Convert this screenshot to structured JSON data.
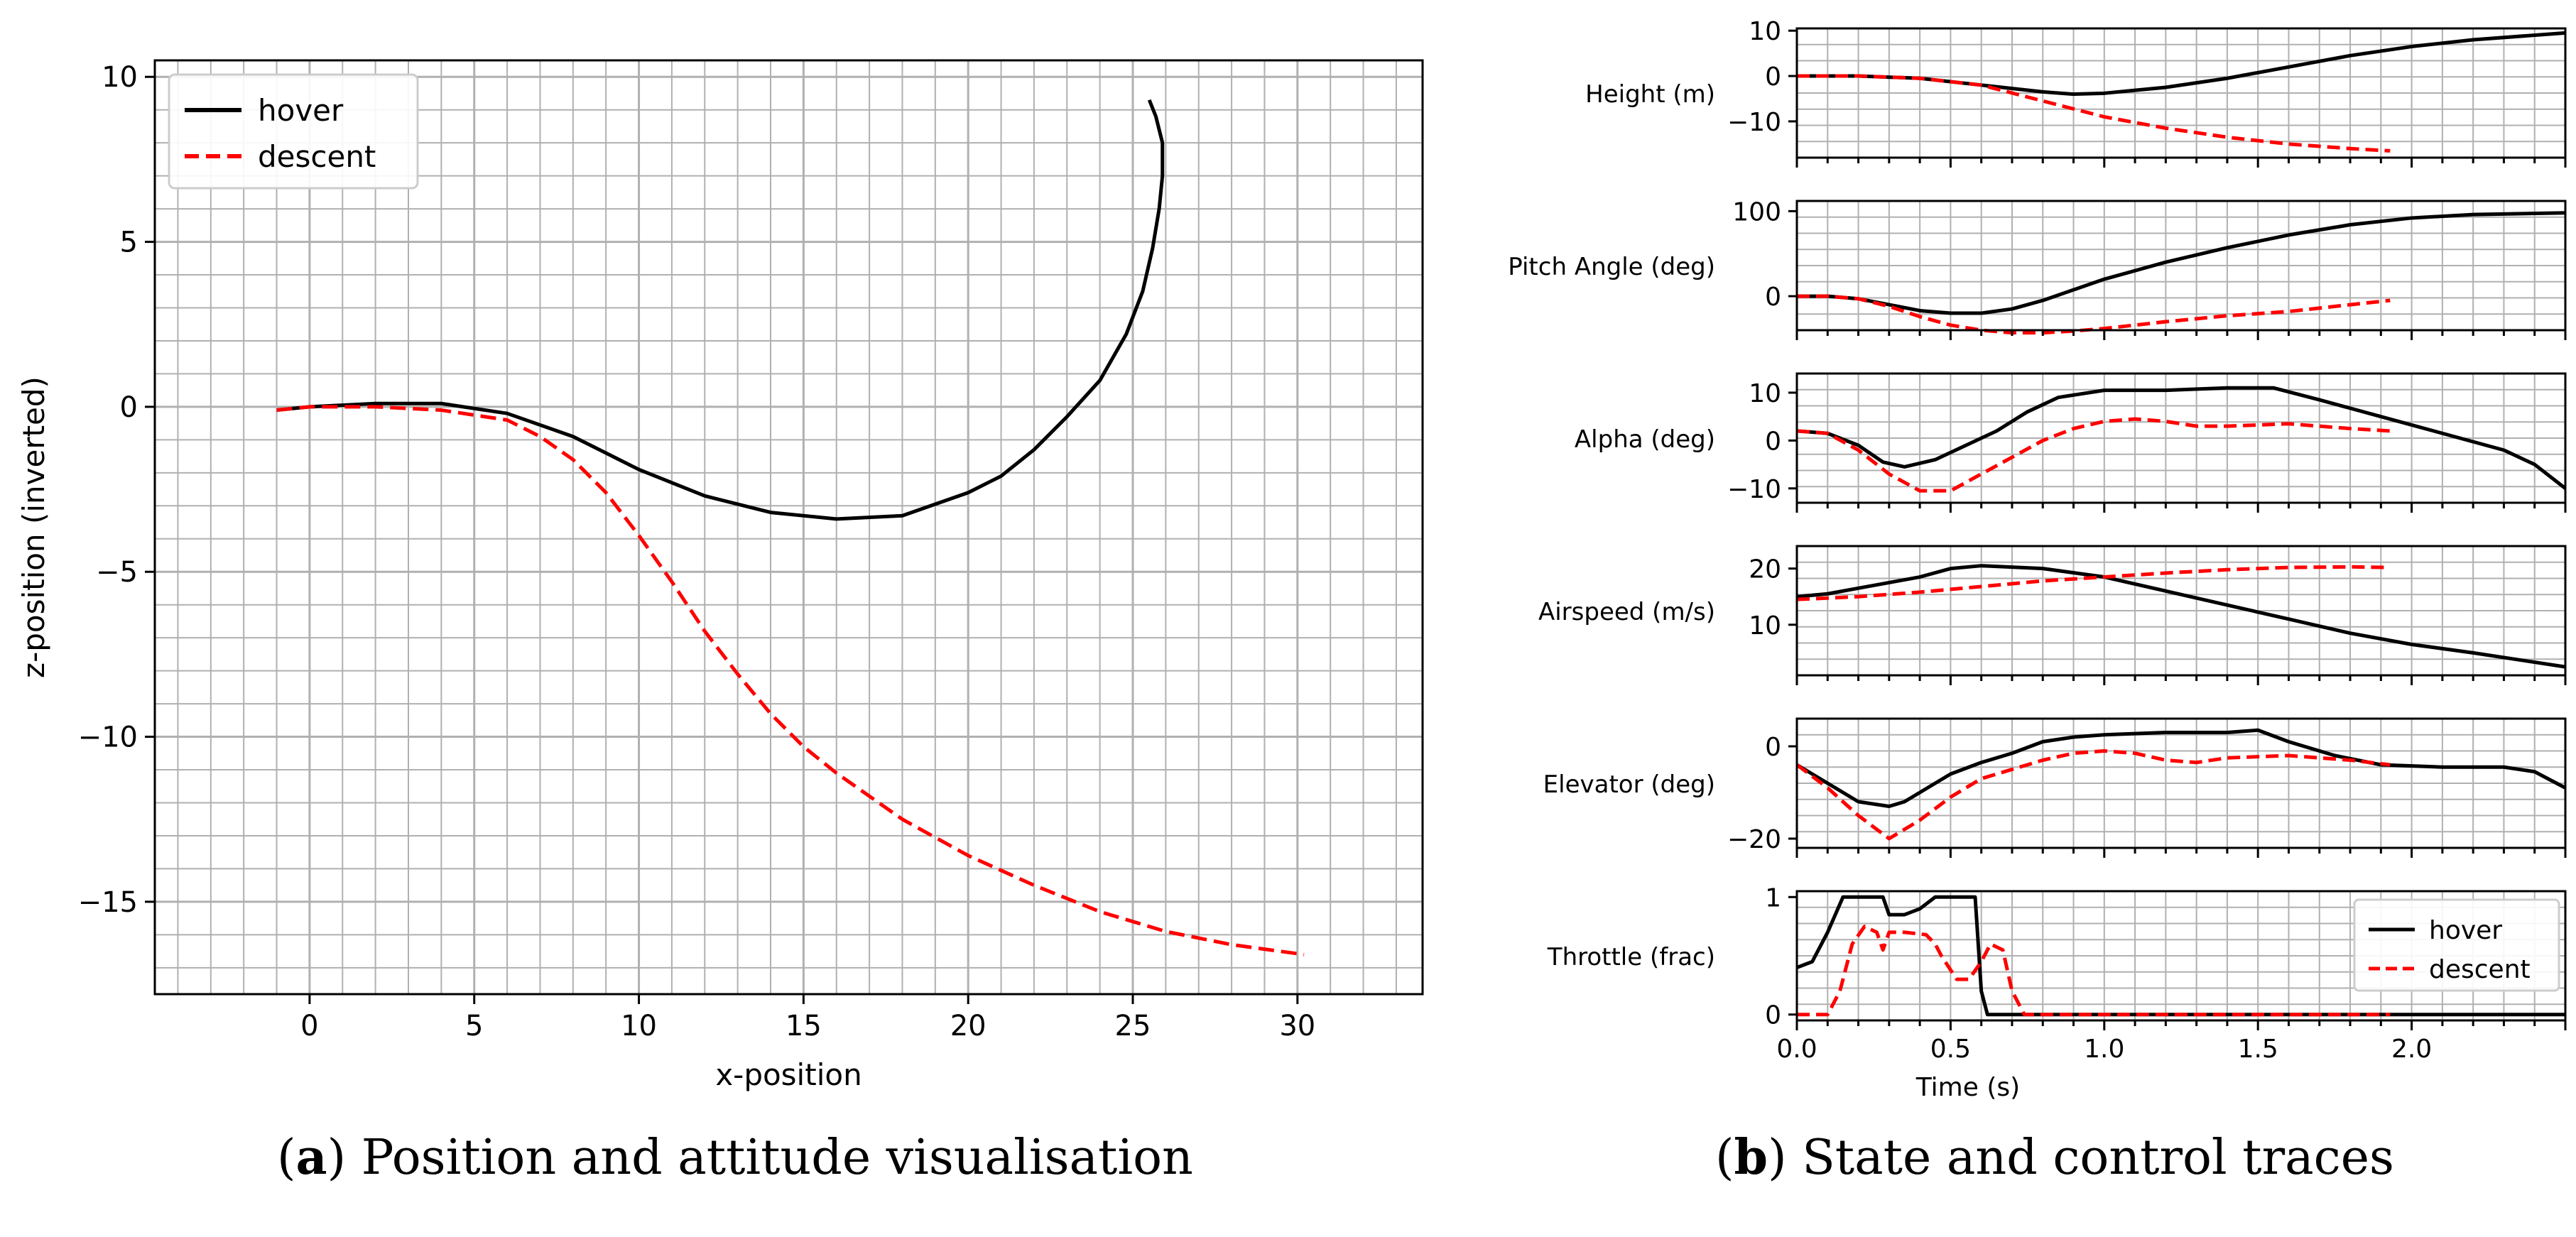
{
  "colors": {
    "hover": "#000000",
    "descent": "#ff0000",
    "green": "#2ca02c",
    "grid": "#b0b0b0"
  },
  "captions": {
    "a": {
      "letter": "a",
      "text": " Position and attitude visualisation"
    },
    "b": {
      "letter": "b",
      "text": " State and control traces"
    }
  },
  "chart_data": [
    {
      "id": "position",
      "type": "line",
      "title": "",
      "xlabel": "x-position",
      "ylabel": "z-position (inverted)",
      "xlim": [
        -4.7,
        33.8
      ],
      "ylim": [
        -17.8,
        10.5
      ],
      "xticks": [
        0,
        5,
        10,
        15,
        20,
        25,
        30
      ],
      "yticks": [
        -15,
        -10,
        -5,
        0,
        5,
        10
      ],
      "xtick_labels": [
        "0",
        "5",
        "10",
        "15",
        "20",
        "25",
        "30"
      ],
      "ytick_labels": [
        "−15",
        "−10",
        "−5",
        "0",
        "5",
        "10"
      ],
      "grid": true,
      "legend": {
        "placement": "top-left",
        "entries": [
          "hover",
          "descent"
        ]
      },
      "series": [
        {
          "name": "hover",
          "color": "#000000",
          "dash": "solid",
          "x": [
            -1,
            0,
            2,
            4,
            6,
            8,
            10,
            12,
            14,
            16,
            18,
            20,
            21,
            22,
            23,
            24,
            24.8,
            25.3,
            25.6,
            25.8,
            25.9,
            25.9,
            25.7,
            25.5
          ],
          "y": [
            -0.1,
            0,
            0.1,
            0.1,
            -0.2,
            -0.9,
            -1.9,
            -2.7,
            -3.2,
            -3.4,
            -3.3,
            -2.6,
            -2.1,
            -1.3,
            -0.3,
            0.8,
            2.2,
            3.5,
            4.8,
            6,
            7,
            8,
            8.8,
            9.3
          ]
        },
        {
          "name": "descent",
          "color": "#ff0000",
          "dash": "dashed",
          "x": [
            -1,
            0,
            2,
            4,
            6,
            7,
            8,
            9,
            10,
            11,
            12,
            13,
            14,
            15,
            16,
            17,
            18,
            20,
            22,
            24,
            26,
            28,
            30.2
          ],
          "y": [
            -0.1,
            0,
            0,
            -0.1,
            -0.4,
            -0.9,
            -1.6,
            -2.6,
            -3.9,
            -5.3,
            -6.8,
            -8.1,
            -9.3,
            -10.3,
            -11.1,
            -11.8,
            -12.5,
            -13.6,
            -14.5,
            -15.3,
            -15.9,
            -16.3,
            -16.6
          ]
        }
      ]
    },
    {
      "id": "traces",
      "type": "line",
      "xlabel": "Time (s)",
      "xlim": [
        0,
        2.5
      ],
      "xticks": [
        0,
        0.5,
        1,
        1.5,
        2
      ],
      "xtick_labels": [
        "0.0",
        "0.5",
        "1.0",
        "1.5",
        "2.0"
      ],
      "grid": true,
      "panels": [
        {
          "label": "Height (m)",
          "ylim": [
            -18,
            10.5
          ],
          "yticks": [
            10,
            0,
            -10
          ],
          "ytick_labels": [
            "10",
            "0",
            "−10"
          ],
          "series": [
            {
              "name": "hover",
              "t": [
                0,
                0.2,
                0.4,
                0.6,
                0.8,
                0.9,
                1.0,
                1.2,
                1.4,
                1.6,
                1.8,
                2.0,
                2.2,
                2.5
              ],
              "v": [
                0,
                0,
                -0.5,
                -2,
                -3.5,
                -4,
                -3.8,
                -2.5,
                -0.5,
                2,
                4.5,
                6.5,
                8,
                9.5
              ]
            },
            {
              "name": "descent",
              "t": [
                0,
                0.2,
                0.4,
                0.6,
                0.8,
                1.0,
                1.2,
                1.4,
                1.6,
                1.8,
                1.93
              ],
              "v": [
                0,
                0,
                -0.5,
                -2,
                -5.5,
                -9,
                -11.5,
                -13.5,
                -15,
                -16,
                -16.5
              ]
            }
          ]
        },
        {
          "label": "Pitch Angle (deg)",
          "ylim": [
            -40,
            112
          ],
          "yticks": [
            100,
            0
          ],
          "ytick_labels": [
            "100",
            "0"
          ],
          "series": [
            {
              "name": "hover",
              "t": [
                0,
                0.1,
                0.2,
                0.3,
                0.4,
                0.5,
                0.6,
                0.7,
                0.8,
                1.0,
                1.2,
                1.4,
                1.6,
                1.8,
                2.0,
                2.2,
                2.5
              ],
              "v": [
                0,
                0,
                -3,
                -10,
                -17,
                -20,
                -20,
                -15,
                -5,
                20,
                40,
                57,
                72,
                84,
                92,
                96,
                98
              ]
            },
            {
              "name": "descent",
              "t": [
                0,
                0.1,
                0.2,
                0.3,
                0.4,
                0.5,
                0.6,
                0.7,
                0.8,
                0.9,
                1.0,
                1.2,
                1.4,
                1.6,
                1.8,
                1.93
              ],
              "v": [
                0,
                0,
                -3,
                -12,
                -24,
                -34,
                -40,
                -43,
                -43,
                -41,
                -38,
                -30,
                -23,
                -18,
                -10,
                -5
              ]
            }
          ]
        },
        {
          "label": "Alpha (deg)",
          "ylim": [
            -13,
            14
          ],
          "yticks": [
            10,
            0,
            -10
          ],
          "ytick_labels": [
            "10",
            "0",
            "−10"
          ],
          "series": [
            {
              "name": "hover",
              "t": [
                0,
                0.1,
                0.2,
                0.28,
                0.35,
                0.45,
                0.55,
                0.65,
                0.75,
                0.85,
                1.0,
                1.2,
                1.4,
                1.55,
                1.7,
                1.9,
                2.1,
                2.3,
                2.4,
                2.5
              ],
              "v": [
                2,
                1.5,
                -1,
                -4.5,
                -5.5,
                -4,
                -1,
                2,
                6,
                9,
                10.5,
                10.5,
                11,
                11,
                8.5,
                5,
                1.5,
                -2,
                -5,
                -10
              ]
            },
            {
              "name": "descent",
              "t": [
                0,
                0.1,
                0.2,
                0.3,
                0.4,
                0.5,
                0.6,
                0.7,
                0.8,
                0.9,
                1.0,
                1.1,
                1.2,
                1.3,
                1.4,
                1.6,
                1.8,
                1.93
              ],
              "v": [
                2,
                1.5,
                -2,
                -7,
                -10.5,
                -10.5,
                -7,
                -3.5,
                0,
                2.5,
                4,
                4.5,
                4,
                3,
                3,
                3.5,
                2.5,
                2
              ]
            }
          ]
        },
        {
          "label": "Airspeed (m/s)",
          "ylim": [
            1,
            24
          ],
          "yticks": [
            20,
            10
          ],
          "ytick_labels": [
            "20",
            "10"
          ],
          "series": [
            {
              "name": "hover",
              "t": [
                0,
                0.1,
                0.2,
                0.3,
                0.4,
                0.5,
                0.6,
                0.8,
                1.0,
                1.2,
                1.4,
                1.6,
                1.8,
                2.0,
                2.2,
                2.5
              ],
              "v": [
                15,
                15.5,
                16.5,
                17.5,
                18.5,
                20,
                20.5,
                20,
                18.5,
                16,
                13.5,
                11,
                8.5,
                6.5,
                5,
                2.5
              ]
            },
            {
              "name": "descent",
              "t": [
                0,
                0.2,
                0.4,
                0.6,
                0.8,
                1.0,
                1.2,
                1.4,
                1.6,
                1.8,
                1.93
              ],
              "v": [
                14.5,
                15,
                15.8,
                16.8,
                17.8,
                18.5,
                19.2,
                19.8,
                20.2,
                20.3,
                20.2
              ]
            }
          ]
        },
        {
          "label": "Elevator (deg)",
          "ylim": [
            -22,
            6
          ],
          "yticks": [
            0,
            -20
          ],
          "ytick_labels": [
            "0",
            "−20"
          ],
          "series": [
            {
              "name": "hover",
              "t": [
                0,
                0.1,
                0.2,
                0.3,
                0.35,
                0.4,
                0.5,
                0.6,
                0.7,
                0.8,
                0.9,
                1.0,
                1.2,
                1.4,
                1.5,
                1.6,
                1.75,
                1.9,
                2.1,
                2.3,
                2.4,
                2.5
              ],
              "v": [
                -4,
                -8,
                -12,
                -13,
                -12,
                -10,
                -6,
                -3.5,
                -1.5,
                1,
                2,
                2.5,
                3,
                3,
                3.5,
                1,
                -2,
                -4,
                -4.5,
                -4.5,
                -5.5,
                -9
              ]
            },
            {
              "name": "descent",
              "t": [
                0,
                0.1,
                0.2,
                0.3,
                0.4,
                0.5,
                0.6,
                0.7,
                0.8,
                0.9,
                1.0,
                1.1,
                1.2,
                1.3,
                1.4,
                1.6,
                1.8,
                1.93
              ],
              "v": [
                -4,
                -9,
                -15,
                -20,
                -16,
                -11,
                -7,
                -5,
                -3,
                -1.5,
                -1,
                -1.5,
                -3,
                -3.5,
                -2.5,
                -2,
                -3,
                -4
              ]
            }
          ]
        },
        {
          "label": "Throttle (frac)",
          "ylim": [
            -0.05,
            1.05
          ],
          "yticks": [
            1,
            0
          ],
          "ytick_labels": [
            "1",
            "0"
          ],
          "legend": {
            "placement": "bottom-right",
            "entries": [
              "hover",
              "descent"
            ]
          },
          "series": [
            {
              "name": "hover",
              "t": [
                0,
                0.05,
                0.1,
                0.15,
                0.2,
                0.28,
                0.3,
                0.35,
                0.4,
                0.45,
                0.58,
                0.59,
                0.6,
                0.62,
                0.7,
                2.5
              ],
              "v": [
                0.4,
                0.45,
                0.7,
                1,
                1,
                1,
                0.85,
                0.85,
                0.9,
                1,
                1,
                0.6,
                0.2,
                0,
                0,
                0
              ]
            },
            {
              "name": "descent",
              "t": [
                0,
                0.1,
                0.14,
                0.18,
                0.22,
                0.26,
                0.28,
                0.3,
                0.35,
                0.42,
                0.45,
                0.47,
                0.52,
                0.56,
                0.6,
                0.63,
                0.67,
                0.7,
                0.74,
                0.76,
                1.93
              ],
              "v": [
                0,
                0,
                0.2,
                0.6,
                0.75,
                0.7,
                0.55,
                0.7,
                0.7,
                0.68,
                0.6,
                0.5,
                0.3,
                0.3,
                0.45,
                0.6,
                0.55,
                0.2,
                0,
                0,
                0
              ]
            }
          ]
        }
      ]
    }
  ]
}
